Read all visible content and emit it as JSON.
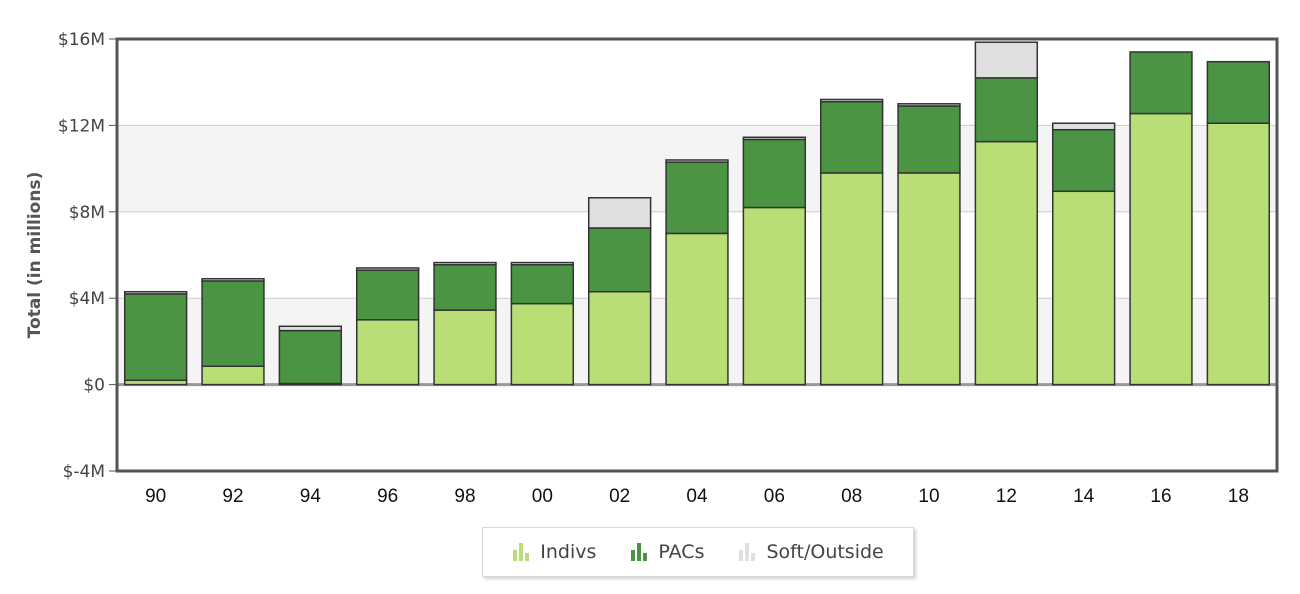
{
  "chart_data": {
    "type": "bar",
    "stacked": true,
    "title": "",
    "xlabel": "",
    "ylabel": "Total (in millions)",
    "ylim": [
      -4,
      16
    ],
    "yticks": [
      -4,
      0,
      4,
      8,
      12,
      16
    ],
    "ytick_labels": [
      "$-4M",
      "$0",
      "$4M",
      "$8M",
      "$12M",
      "$16M"
    ],
    "grid": true,
    "legend_position": "bottom",
    "categories": [
      "90",
      "92",
      "94",
      "96",
      "98",
      "00",
      "02",
      "04",
      "06",
      "08",
      "10",
      "12",
      "14",
      "16",
      "18"
    ],
    "series": [
      {
        "name": "Indivs",
        "color": "#bade76",
        "values": [
          0.2,
          0.85,
          0.05,
          3.0,
          3.45,
          3.75,
          4.3,
          7.0,
          8.2,
          9.8,
          9.8,
          11.25,
          8.95,
          12.55,
          12.1
        ]
      },
      {
        "name": "PACs",
        "color": "#4b9443",
        "values": [
          4.0,
          3.95,
          2.45,
          2.3,
          2.1,
          1.8,
          2.95,
          3.3,
          3.15,
          3.3,
          3.1,
          2.95,
          2.85,
          2.85,
          2.85
        ]
      },
      {
        "name": "Soft/Outside",
        "color": "#e0e0e0",
        "values": [
          0.1,
          0.1,
          0.2,
          0.1,
          0.1,
          0.1,
          1.4,
          0.1,
          0.1,
          0.1,
          0.1,
          1.65,
          0.3,
          0.0,
          0.0
        ]
      }
    ]
  },
  "legend": {
    "items": [
      {
        "label": "Indivs",
        "icon": "bar-chart-icon",
        "color": "#bade76"
      },
      {
        "label": "PACs",
        "icon": "bar-chart-icon",
        "color": "#4b9443"
      },
      {
        "label": "Soft/Outside",
        "icon": "bar-chart-icon",
        "color": "#e0e0e0"
      }
    ]
  }
}
